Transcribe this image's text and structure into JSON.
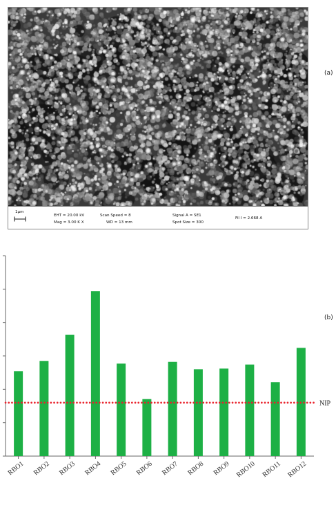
{
  "panel_a": {
    "label": "(a)",
    "scale_label": "1µm",
    "fields": {
      "eht": "EHT = 20.00 kV",
      "mag": "Mag =  3.00 K X",
      "scan_speed": "Scan Speed = 8",
      "wd": "WD =   13 mm",
      "signal": "Signal A = SE1",
      "spot": "Spot Size = 300",
      "fil": "Fil I =  2.668 A"
    }
  },
  "panel_b": {
    "label": "(b)",
    "reference_label": "NIP"
  },
  "chart_data": {
    "type": "bar",
    "categories": [
      "RBO1",
      "RBO2",
      "RBO3",
      "RBO4",
      "RBO5",
      "RBO6",
      "RBO7",
      "RBO8",
      "RBO9",
      "RBO10",
      "RBO11",
      "RBO12"
    ],
    "values": [
      2.54,
      2.85,
      3.63,
      4.94,
      2.77,
      1.71,
      2.82,
      2.6,
      2.62,
      2.74,
      2.21,
      3.24
    ],
    "reference_line": {
      "label": "NIP",
      "value": 1.6,
      "color": "#e8202a",
      "style": "dotted"
    },
    "bar_color": "#1db045",
    "ylim": [
      0,
      6
    ],
    "yticks": [
      0,
      1,
      2,
      3,
      4,
      5,
      6
    ],
    "title": "",
    "xlabel": "",
    "ylabel": "",
    "grid": false
  }
}
